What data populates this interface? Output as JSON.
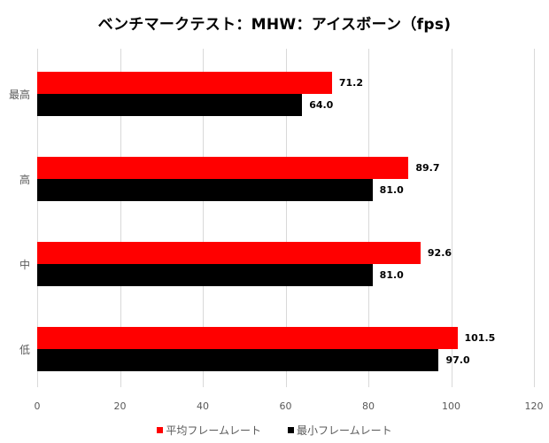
{
  "chart_data": {
    "type": "bar",
    "orientation": "horizontal",
    "title": "ベンチマークテスト：MHW：アイスボーン（fps)",
    "categories": [
      "最高",
      "高",
      "中",
      "低"
    ],
    "series": [
      {
        "name": "平均フレームレート",
        "color": "#ff0000",
        "values": [
          71.2,
          89.7,
          92.6,
          101.5
        ],
        "labels": [
          "71.2",
          "89.7",
          "92.6",
          "101.5"
        ]
      },
      {
        "name": "最小フレームレート",
        "color": "#000000",
        "values": [
          64.0,
          81.0,
          81.0,
          97.0
        ],
        "labels": [
          "64.0",
          "81.0",
          "81.0",
          "97.0"
        ]
      }
    ],
    "xlabel": "",
    "ylabel": "",
    "xlim": [
      0,
      120
    ],
    "xticks": [
      "0",
      "20",
      "40",
      "60",
      "80",
      "100",
      "120"
    ],
    "grid": true,
    "legend_position": "bottom"
  }
}
